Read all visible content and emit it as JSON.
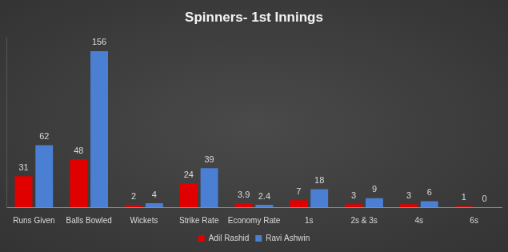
{
  "chart_data": {
    "type": "bar",
    "title": "Spinners- 1st Innings",
    "categories": [
      "Runs Given",
      "Balls Bowled",
      "Wickets",
      "Strike Rate",
      "Economy Rate",
      "1s",
      "2s & 3s",
      "4s",
      "6s"
    ],
    "series": [
      {
        "name": "Adil Rashid",
        "color": "#e00000",
        "values": [
          31,
          48,
          2,
          24,
          3.9,
          7,
          3,
          3,
          1
        ]
      },
      {
        "name": "Ravi Ashwin",
        "color": "#4a7fd4",
        "values": [
          62,
          156,
          4,
          39,
          2.4,
          18,
          9,
          6,
          0
        ]
      }
    ],
    "ylim": [
      0,
      170
    ],
    "grid": false,
    "legend": "bottom",
    "data_labels": true,
    "tick_labels": "x"
  }
}
